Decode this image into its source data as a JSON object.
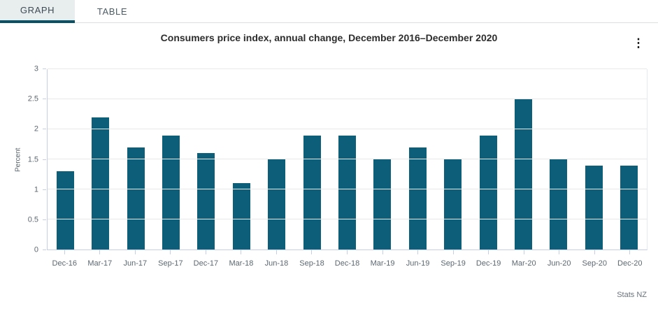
{
  "tabs": [
    {
      "label": "GRAPH",
      "active": true
    },
    {
      "label": "TABLE",
      "active": false
    }
  ],
  "menu": {
    "kebab_icon": "⋮"
  },
  "attribution": "Stats NZ",
  "colors": {
    "bar": "#0d5f79",
    "tab_active_underline": "#0a5166",
    "axis_line": "#c5cee4",
    "gridline": "#e8e8e8"
  },
  "chart_data": {
    "type": "bar",
    "title": "Consumers price index, annual change, December 2016–December 2020",
    "ylabel": "Percent",
    "xlabel": "",
    "ylim": [
      0,
      3
    ],
    "yticks": [
      0,
      0.5,
      1,
      1.5,
      2,
      2.5,
      3
    ],
    "grid": true,
    "legend_position": "none",
    "categories": [
      "Dec-16",
      "Mar-17",
      "Jun-17",
      "Sep-17",
      "Dec-17",
      "Mar-18",
      "Jun-18",
      "Sep-18",
      "Dec-18",
      "Mar-19",
      "Jun-19",
      "Sep-19",
      "Dec-19",
      "Mar-20",
      "Jun-20",
      "Sep-20",
      "Dec-20"
    ],
    "values": [
      1.3,
      2.2,
      1.7,
      1.9,
      1.6,
      1.1,
      1.5,
      1.9,
      1.9,
      1.5,
      1.7,
      1.5,
      1.9,
      2.5,
      1.5,
      1.4,
      1.4
    ]
  }
}
